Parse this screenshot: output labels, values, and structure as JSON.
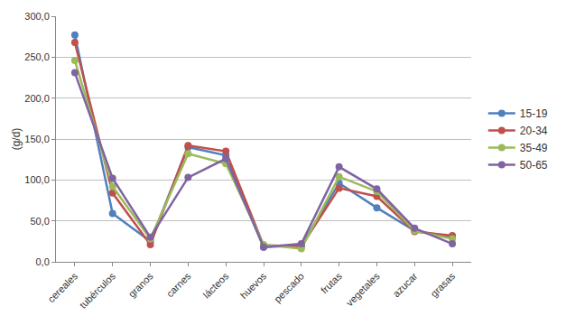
{
  "chart_data": {
    "type": "line",
    "y_label": "(g/d)",
    "categories": [
      "cereales",
      "tubérculos",
      "granos",
      "carnes",
      "lácteos",
      "huevos",
      "pescado",
      "frutas",
      "vegetales",
      "azucar",
      "grasas"
    ],
    "series": [
      {
        "name": "15-19",
        "color": "#4F81BD",
        "values": [
          277,
          59,
          25,
          140,
          130,
          18,
          20,
          96,
          66,
          38,
          30
        ]
      },
      {
        "name": "20-34",
        "color": "#C0504D",
        "values": [
          268,
          84,
          21,
          142,
          135,
          20,
          19,
          90,
          80,
          37,
          32
        ]
      },
      {
        "name": "35-49",
        "color": "#9BBB59",
        "values": [
          246,
          92,
          28,
          132,
          120,
          21,
          16,
          104,
          86,
          38,
          28
        ]
      },
      {
        "name": "50-65",
        "color": "#8064A2",
        "values": [
          231,
          102,
          30,
          103,
          126,
          18,
          22,
          116,
          89,
          41,
          22
        ]
      }
    ],
    "ylim": [
      0,
      300
    ],
    "yticks": [
      {
        "value": 0,
        "label": "0,0"
      },
      {
        "value": 50,
        "label": "50,0"
      },
      {
        "value": 100,
        "label": "100,0"
      },
      {
        "value": 150,
        "label": "150,0"
      },
      {
        "value": 200,
        "label": "200,0"
      },
      {
        "value": 250,
        "label": "250,0"
      },
      {
        "value": 300,
        "label": "300,0"
      }
    ],
    "grid": true,
    "legend": "right",
    "marker": "circle"
  }
}
